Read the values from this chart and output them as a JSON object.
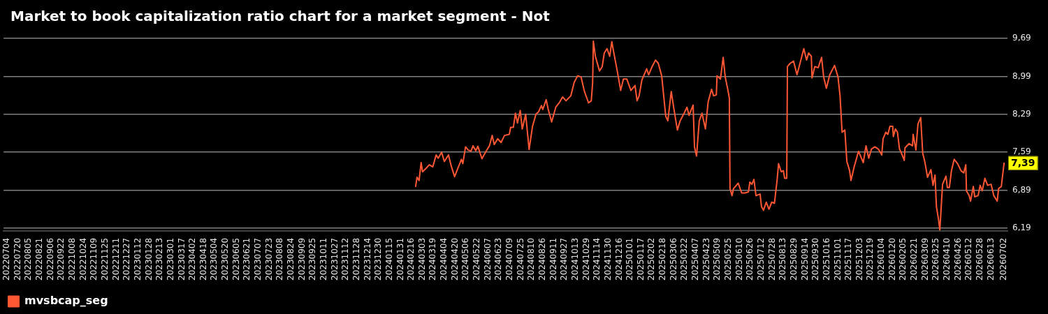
{
  "chart_data": {
    "type": "line",
    "title": "Market to book capitalization ratio chart for a market segment - Not",
    "x": [
      "2024-02-22",
      "2024-02-24",
      "2024-02-27",
      "2024-03-01",
      "2024-03-03",
      "2024-03-08",
      "2024-03-13",
      "2024-03-18",
      "2024-03-23",
      "2024-03-26",
      "2024-03-31",
      "2024-04-04",
      "2024-04-10",
      "2024-04-14",
      "2024-04-19",
      "2024-04-23",
      "2024-04-29",
      "2024-05-01",
      "2024-05-05",
      "2024-05-09",
      "2024-05-13",
      "2024-05-16",
      "2024-05-20",
      "2024-05-23",
      "2024-05-29",
      "2024-06-04",
      "2024-06-09",
      "2024-06-13",
      "2024-06-16",
      "2024-06-21",
      "2024-06-26",
      "2024-07-01",
      "2024-07-08",
      "2024-07-10",
      "2024-07-14",
      "2024-07-17",
      "2024-07-20",
      "2024-07-24",
      "2024-07-27",
      "2024-08-01",
      "2024-08-06",
      "2024-08-11",
      "2024-08-16",
      "2024-08-20",
      "2024-08-24",
      "2024-08-26",
      "2024-08-31",
      "2024-09-03",
      "2024-09-08",
      "2024-09-14",
      "2024-09-19",
      "2024-09-24",
      "2024-09-29",
      "2024-10-06",
      "2024-10-11",
      "2024-10-16",
      "2024-10-21",
      "2024-10-26",
      "2024-11-01",
      "2024-11-05",
      "2024-11-07",
      "2024-11-08",
      "2024-11-11",
      "2024-11-17",
      "2024-11-21",
      "2024-11-24",
      "2024-11-28",
      "2024-12-02",
      "2024-12-05",
      "2024-12-08",
      "2024-12-13",
      "2024-12-18",
      "2024-12-22",
      "2024-12-27",
      "2025-01-02",
      "2025-01-08",
      "2025-01-11",
      "2025-01-14",
      "2025-01-18",
      "2025-01-25",
      "2025-01-28",
      "2025-02-02",
      "2025-02-07",
      "2025-02-11",
      "2025-02-16",
      "2025-02-22",
      "2025-02-25",
      "2025-03-02",
      "2025-03-06",
      "2025-03-11",
      "2025-03-15",
      "2025-03-20",
      "2025-03-25",
      "2025-03-28",
      "2025-04-03",
      "2025-04-05",
      "2025-04-08",
      "2025-04-12",
      "2025-04-16",
      "2025-04-21",
      "2025-04-25",
      "2025-04-30",
      "2025-05-03",
      "2025-05-07",
      "2025-05-08",
      "2025-05-13",
      "2025-05-17",
      "2025-05-20",
      "2025-05-24",
      "2025-05-26",
      "2025-05-27",
      "2025-05-30",
      "2025-06-01",
      "2025-06-08",
      "2025-06-13",
      "2025-06-18",
      "2025-06-23",
      "2025-06-25",
      "2025-06-28",
      "2025-07-01",
      "2025-07-04",
      "2025-07-10",
      "2025-07-12",
      "2025-07-15",
      "2025-07-19",
      "2025-07-23",
      "2025-07-27",
      "2025-07-31",
      "2025-08-04",
      "2025-08-06",
      "2025-08-10",
      "2025-08-13",
      "2025-08-15",
      "2025-08-18",
      "2025-08-19",
      "2025-08-23",
      "2025-08-28",
      "2025-09-02",
      "2025-09-06",
      "2025-09-12",
      "2025-09-16",
      "2025-09-19",
      "2025-09-23",
      "2025-09-24",
      "2025-09-28",
      "2025-10-03",
      "2025-10-08",
      "2025-10-11",
      "2025-10-15",
      "2025-10-20",
      "2025-10-27",
      "2025-11-01",
      "2025-11-04",
      "2025-11-07",
      "2025-11-11",
      "2025-11-14",
      "2025-11-18",
      "2025-11-20",
      "2025-11-25",
      "2025-11-26",
      "2025-12-01",
      "2025-12-08",
      "2025-12-12",
      "2025-12-16",
      "2025-12-20",
      "2025-12-25",
      "2025-12-30",
      "2026-01-04",
      "2026-01-06",
      "2026-01-10",
      "2026-01-13",
      "2026-01-16",
      "2026-01-20",
      "2026-01-21",
      "2026-01-24",
      "2026-01-27",
      "2026-01-30",
      "2026-02-02",
      "2026-02-06",
      "2026-02-07",
      "2026-02-13",
      "2026-02-18",
      "2026-02-19",
      "2026-02-23",
      "2026-02-26",
      "2026-03-02",
      "2026-03-05",
      "2026-03-08",
      "2026-03-12",
      "2026-03-17",
      "2026-03-20",
      "2026-03-23",
      "2026-03-25",
      "2026-03-28",
      "2026-03-30",
      "2026-03-31",
      "2026-04-03",
      "2026-04-06",
      "2026-04-08",
      "2026-04-10",
      "2026-04-13",
      "2026-04-16",
      "2026-04-20",
      "2026-04-25",
      "2026-04-30",
      "2026-05-04",
      "2026-05-07",
      "2026-05-08",
      "2026-05-12",
      "2026-05-14",
      "2026-05-18",
      "2026-05-20",
      "2026-05-25",
      "2026-05-28",
      "2026-05-31",
      "2026-06-04",
      "2026-06-08",
      "2026-06-13",
      "2026-06-17",
      "2026-06-22",
      "2026-06-24",
      "2026-06-28",
      "2026-07-02"
    ],
    "series": [
      {
        "name": "mvsbcap_seg",
        "color": "#ff5733",
        "values": [
          6.96,
          7.13,
          7.07,
          7.4,
          7.23,
          7.29,
          7.36,
          7.32,
          7.54,
          7.48,
          7.59,
          7.42,
          7.54,
          7.34,
          7.14,
          7.27,
          7.46,
          7.38,
          7.69,
          7.63,
          7.61,
          7.71,
          7.62,
          7.7,
          7.47,
          7.61,
          7.71,
          7.9,
          7.73,
          7.84,
          7.77,
          7.9,
          7.92,
          8.05,
          8.05,
          8.31,
          8.13,
          8.36,
          8.02,
          8.29,
          7.64,
          8.07,
          8.29,
          8.34,
          8.45,
          8.38,
          8.56,
          8.38,
          8.15,
          8.42,
          8.5,
          8.61,
          8.54,
          8.63,
          8.88,
          9.0,
          8.98,
          8.71,
          8.5,
          8.54,
          8.88,
          9.64,
          9.36,
          9.09,
          9.17,
          9.42,
          9.5,
          9.36,
          9.63,
          9.42,
          9.09,
          8.73,
          8.94,
          8.94,
          8.73,
          8.82,
          8.54,
          8.63,
          8.92,
          9.13,
          9.02,
          9.17,
          9.29,
          9.23,
          9.0,
          8.25,
          8.17,
          8.71,
          8.38,
          8.0,
          8.17,
          8.29,
          8.42,
          8.27,
          8.46,
          7.69,
          7.52,
          8.17,
          8.31,
          8.02,
          8.52,
          8.75,
          8.63,
          8.65,
          9.0,
          8.94,
          9.34,
          8.98,
          8.73,
          8.59,
          6.92,
          6.79,
          6.92,
          7.02,
          6.84,
          6.84,
          6.86,
          7.04,
          7.0,
          7.09,
          6.79,
          6.82,
          6.59,
          6.52,
          6.67,
          6.54,
          6.67,
          6.65,
          7.09,
          7.38,
          7.23,
          7.25,
          7.11,
          7.11,
          9.17,
          9.23,
          9.27,
          9.02,
          9.21,
          9.5,
          9.29,
          9.42,
          9.36,
          8.96,
          9.17,
          9.15,
          9.34,
          8.98,
          8.77,
          9.02,
          9.19,
          8.98,
          8.63,
          7.96,
          8.0,
          7.42,
          7.25,
          7.07,
          7.34,
          7.38,
          7.61,
          7.4,
          7.71,
          7.48,
          7.65,
          7.69,
          7.65,
          7.54,
          7.84,
          7.96,
          7.92,
          8.07,
          8.07,
          7.88,
          8.02,
          7.96,
          7.65,
          7.57,
          7.44,
          7.67,
          7.75,
          7.71,
          7.92,
          7.63,
          8.11,
          8.23,
          7.57,
          7.42,
          7.13,
          7.27,
          6.98,
          7.17,
          6.59,
          6.36,
          6.16,
          6.36,
          7.0,
          7.09,
          7.15,
          6.94,
          6.94,
          7.25,
          7.46,
          7.38,
          7.25,
          7.21,
          7.36,
          6.88,
          6.79,
          6.69,
          6.96,
          6.77,
          6.79,
          6.98,
          6.88,
          7.11,
          6.98,
          7.0,
          6.79,
          6.69,
          6.92,
          6.96,
          7.39
        ]
      }
    ],
    "xlim": [
      "2022-06-29",
      "2026-07-07"
    ],
    "xticks": [
      {
        "value": "2022-07-04",
        "label": "20220704"
      },
      {
        "value": "2022-07-20",
        "label": "20220720"
      },
      {
        "value": "2022-08-05",
        "label": "20220805"
      },
      {
        "value": "2022-08-21",
        "label": "20220821"
      },
      {
        "value": "2022-09-06",
        "label": "20220906"
      },
      {
        "value": "2022-09-22",
        "label": "20220922"
      },
      {
        "value": "2022-10-08",
        "label": "20221008"
      },
      {
        "value": "2022-10-24",
        "label": "20221024"
      },
      {
        "value": "2022-11-09",
        "label": "20221109"
      },
      {
        "value": "2022-11-25",
        "label": "20221125"
      },
      {
        "value": "2022-12-11",
        "label": "20221211"
      },
      {
        "value": "2022-12-27",
        "label": "20221227"
      },
      {
        "value": "2023-01-12",
        "label": "20230112"
      },
      {
        "value": "2023-01-28",
        "label": "20230128"
      },
      {
        "value": "2023-02-13",
        "label": "20230213"
      },
      {
        "value": "2023-03-01",
        "label": "20230301"
      },
      {
        "value": "2023-03-17",
        "label": "20230317"
      },
      {
        "value": "2023-04-02",
        "label": "20230402"
      },
      {
        "value": "2023-04-18",
        "label": "20230418"
      },
      {
        "value": "2023-05-04",
        "label": "20230504"
      },
      {
        "value": "2023-05-20",
        "label": "20230520"
      },
      {
        "value": "2023-06-05",
        "label": "20230605"
      },
      {
        "value": "2023-06-21",
        "label": "20230621"
      },
      {
        "value": "2023-07-07",
        "label": "20230707"
      },
      {
        "value": "2023-07-23",
        "label": "20230723"
      },
      {
        "value": "2023-08-08",
        "label": "20230808"
      },
      {
        "value": "2023-08-24",
        "label": "20230824"
      },
      {
        "value": "2023-09-09",
        "label": "20230909"
      },
      {
        "value": "2023-09-25",
        "label": "20230925"
      },
      {
        "value": "2023-10-11",
        "label": "20231011"
      },
      {
        "value": "2023-10-27",
        "label": "20231027"
      },
      {
        "value": "2023-11-12",
        "label": "20231112"
      },
      {
        "value": "2023-11-28",
        "label": "20231128"
      },
      {
        "value": "2023-12-14",
        "label": "20231214"
      },
      {
        "value": "2023-12-30",
        "label": "20231230"
      },
      {
        "value": "2024-01-15",
        "label": "20240115"
      },
      {
        "value": "2024-01-31",
        "label": "20240131"
      },
      {
        "value": "2024-02-16",
        "label": "20240216"
      },
      {
        "value": "2024-03-03",
        "label": "20240303"
      },
      {
        "value": "2024-03-19",
        "label": "20240319"
      },
      {
        "value": "2024-04-04",
        "label": "20240404"
      },
      {
        "value": "2024-04-20",
        "label": "20240420"
      },
      {
        "value": "2024-05-06",
        "label": "20240506"
      },
      {
        "value": "2024-05-22",
        "label": "20240522"
      },
      {
        "value": "2024-06-07",
        "label": "20240607"
      },
      {
        "value": "2024-06-23",
        "label": "20240623"
      },
      {
        "value": "2024-07-09",
        "label": "20240709"
      },
      {
        "value": "2024-07-25",
        "label": "20240725"
      },
      {
        "value": "2024-08-10",
        "label": "20240810"
      },
      {
        "value": "2024-08-26",
        "label": "20240826"
      },
      {
        "value": "2024-09-11",
        "label": "20240911"
      },
      {
        "value": "2024-09-27",
        "label": "20240927"
      },
      {
        "value": "2024-10-13",
        "label": "20241013"
      },
      {
        "value": "2024-10-29",
        "label": "20241029"
      },
      {
        "value": "2024-11-14",
        "label": "20241114"
      },
      {
        "value": "2024-11-30",
        "label": "20241130"
      },
      {
        "value": "2024-12-16",
        "label": "20241216"
      },
      {
        "value": "2025-01-01",
        "label": "20250101"
      },
      {
        "value": "2025-01-17",
        "label": "20250117"
      },
      {
        "value": "2025-02-02",
        "label": "20250202"
      },
      {
        "value": "2025-02-18",
        "label": "20250218"
      },
      {
        "value": "2025-03-06",
        "label": "20250306"
      },
      {
        "value": "2025-03-22",
        "label": "20250322"
      },
      {
        "value": "2025-04-07",
        "label": "20250407"
      },
      {
        "value": "2025-04-23",
        "label": "20250423"
      },
      {
        "value": "2025-05-09",
        "label": "20250509"
      },
      {
        "value": "2025-05-25",
        "label": "20250525"
      },
      {
        "value": "2025-06-10",
        "label": "20250610"
      },
      {
        "value": "2025-06-26",
        "label": "20250626"
      },
      {
        "value": "2025-07-12",
        "label": "20250712"
      },
      {
        "value": "2025-07-28",
        "label": "20250728"
      },
      {
        "value": "2025-08-13",
        "label": "20250813"
      },
      {
        "value": "2025-08-29",
        "label": "20250829"
      },
      {
        "value": "2025-09-14",
        "label": "20250914"
      },
      {
        "value": "2025-09-30",
        "label": "20250930"
      },
      {
        "value": "2025-10-16",
        "label": "20251016"
      },
      {
        "value": "2025-11-01",
        "label": "20251101"
      },
      {
        "value": "2025-11-17",
        "label": "20251117"
      },
      {
        "value": "2025-12-03",
        "label": "20251203"
      },
      {
        "value": "2025-12-19",
        "label": "20251219"
      },
      {
        "value": "2026-01-04",
        "label": "20260104"
      },
      {
        "value": "2026-01-20",
        "label": "20260120"
      },
      {
        "value": "2026-02-05",
        "label": "20260205"
      },
      {
        "value": "2026-02-21",
        "label": "20260221"
      },
      {
        "value": "2026-03-09",
        "label": "20260309"
      },
      {
        "value": "2026-03-25",
        "label": "20260325"
      },
      {
        "value": "2026-04-10",
        "label": "20260410"
      },
      {
        "value": "2026-04-26",
        "label": "20260426"
      },
      {
        "value": "2026-05-12",
        "label": "20260512"
      },
      {
        "value": "2026-05-28",
        "label": "20260528"
      },
      {
        "value": "2026-06-13",
        "label": "20260613"
      },
      {
        "value": "2026-07-02",
        "label": "20260702"
      }
    ],
    "ylim": [
      6.14,
      9.69
    ],
    "yticks": [
      {
        "value": 6.19,
        "label": "6,19"
      },
      {
        "value": 6.89,
        "label": "6,89"
      },
      {
        "value": 7.59,
        "label": "7,59"
      },
      {
        "value": 8.29,
        "label": "8,29"
      },
      {
        "value": 8.99,
        "label": "8,99"
      },
      {
        "value": 9.69,
        "label": "9,69"
      }
    ],
    "grid": "y",
    "legend": "bottom left",
    "marker": "none",
    "annotations": [
      {
        "text": "7,39",
        "x": "2026-07-02",
        "y": 7.39
      }
    ]
  }
}
